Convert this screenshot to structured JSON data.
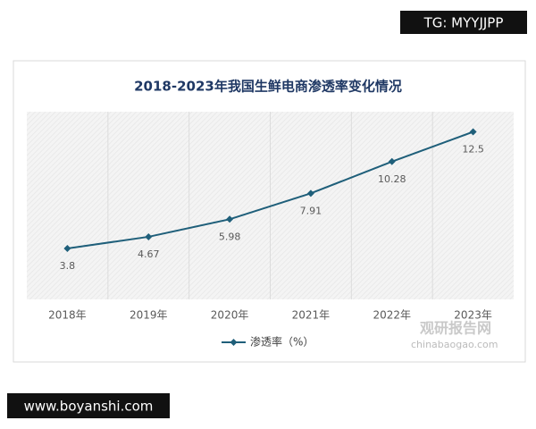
{
  "chart_data": {
    "type": "line",
    "title": "2018-2023年我国生鲜电商渗透率变化情况",
    "categories": [
      "2018年",
      "2019年",
      "2020年",
      "2021年",
      "2022年",
      "2023年"
    ],
    "series": [
      {
        "name": "渗透率（%）",
        "color": "#1f5f7a",
        "values": [
          3.8,
          4.67,
          5.98,
          7.91,
          10.28,
          12.5
        ]
      }
    ],
    "ylim": [
      0,
      14
    ],
    "grid": true,
    "legend": "bottom"
  },
  "watermarks": {
    "top_right": "TG: MYYJJPP",
    "bottom_left": "www.boyanshi.com",
    "logo": "观研报告网",
    "logo_url": "chinabaogao.com"
  }
}
